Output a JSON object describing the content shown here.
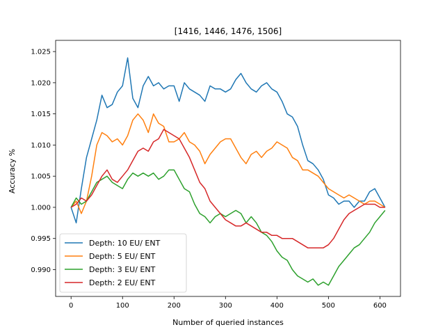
{
  "chart_data": {
    "type": "line",
    "title": "[1416, 1446, 1476, 1506]",
    "xlabel": "Number of queried instances",
    "ylabel": "Accuracy %",
    "xlim": [
      -30,
      640
    ],
    "ylim": [
      0.9857,
      1.0268
    ],
    "xticks": [
      0,
      100,
      200,
      300,
      400,
      500,
      600
    ],
    "yticks": [
      0.99,
      0.995,
      1.0,
      1.005,
      1.01,
      1.015,
      1.02,
      1.025
    ],
    "ytick_labels": [
      "0.990",
      "0.995",
      "1.000",
      "1.005",
      "1.010",
      "1.015",
      "1.020",
      "1.025"
    ],
    "grid": false,
    "legend_position": "lower-left",
    "series": [
      {
        "name": "Depth: 10 EU/ ENT",
        "color": "#1f77b4",
        "x": [
          0,
          10,
          20,
          30,
          40,
          50,
          60,
          70,
          80,
          90,
          100,
          110,
          120,
          130,
          140,
          150,
          160,
          170,
          180,
          190,
          200,
          210,
          220,
          230,
          240,
          250,
          260,
          270,
          280,
          290,
          300,
          310,
          320,
          330,
          340,
          350,
          360,
          370,
          380,
          390,
          400,
          410,
          420,
          430,
          440,
          450,
          460,
          470,
          480,
          490,
          500,
          510,
          520,
          530,
          540,
          550,
          560,
          570,
          580,
          590,
          600,
          610
        ],
        "y": [
          1.0,
          0.9975,
          1.003,
          1.008,
          1.011,
          1.014,
          1.018,
          1.016,
          1.0165,
          1.0185,
          1.0195,
          1.024,
          1.0175,
          1.016,
          1.0195,
          1.021,
          1.0195,
          1.02,
          1.019,
          1.0195,
          1.0195,
          1.017,
          1.02,
          1.019,
          1.0185,
          1.018,
          1.017,
          1.0195,
          1.019,
          1.019,
          1.0185,
          1.019,
          1.0205,
          1.0215,
          1.02,
          1.019,
          1.0185,
          1.0195,
          1.02,
          1.019,
          1.0185,
          1.017,
          1.015,
          1.0145,
          1.013,
          1.01,
          1.0075,
          1.007,
          1.006,
          1.0045,
          1.002,
          1.0015,
          1.0005,
          1.001,
          1.001,
          1.0,
          1.001,
          1.001,
          1.0025,
          1.003,
          1.0015,
          1.0
        ]
      },
      {
        "name": "Depth: 5 EU/ ENT",
        "color": "#ff7f0e",
        "x": [
          0,
          10,
          20,
          30,
          40,
          50,
          60,
          70,
          80,
          90,
          100,
          110,
          120,
          130,
          140,
          150,
          160,
          170,
          180,
          190,
          200,
          210,
          220,
          230,
          240,
          250,
          260,
          270,
          280,
          290,
          300,
          310,
          320,
          330,
          340,
          350,
          360,
          370,
          380,
          390,
          400,
          410,
          420,
          430,
          440,
          450,
          460,
          470,
          480,
          490,
          500,
          510,
          520,
          530,
          540,
          550,
          560,
          570,
          580,
          590,
          600,
          610
        ],
        "y": [
          1.0,
          1.001,
          0.999,
          1.001,
          1.005,
          1.01,
          1.012,
          1.0115,
          1.0105,
          1.011,
          1.01,
          1.0115,
          1.014,
          1.015,
          1.014,
          1.012,
          1.015,
          1.0135,
          1.013,
          1.0105,
          1.0105,
          1.011,
          1.012,
          1.0105,
          1.01,
          1.009,
          1.007,
          1.0085,
          1.0095,
          1.0105,
          1.011,
          1.011,
          1.0095,
          1.008,
          1.007,
          1.0085,
          1.009,
          1.008,
          1.009,
          1.0095,
          1.0105,
          1.01,
          1.0095,
          1.008,
          1.0075,
          1.006,
          1.006,
          1.0055,
          1.005,
          1.004,
          1.003,
          1.0025,
          1.002,
          1.0015,
          1.002,
          1.0015,
          1.001,
          1.0005,
          1.001,
          1.001,
          1.0005,
          1.0
        ]
      },
      {
        "name": "Depth: 3 EU/ ENT",
        "color": "#2ca02c",
        "x": [
          0,
          10,
          20,
          30,
          40,
          50,
          60,
          70,
          80,
          90,
          100,
          110,
          120,
          130,
          140,
          150,
          160,
          170,
          180,
          190,
          200,
          210,
          220,
          230,
          240,
          250,
          260,
          270,
          280,
          290,
          300,
          310,
          320,
          330,
          340,
          350,
          360,
          370,
          380,
          390,
          400,
          410,
          420,
          430,
          440,
          450,
          460,
          470,
          480,
          490,
          500,
          510,
          520,
          530,
          540,
          550,
          560,
          570,
          580,
          590,
          600,
          610
        ],
        "y": [
          1.0,
          1.0015,
          1.0005,
          1.001,
          1.0025,
          1.004,
          1.0045,
          1.005,
          1.004,
          1.0035,
          1.003,
          1.0045,
          1.0055,
          1.005,
          1.0055,
          1.005,
          1.0055,
          1.0045,
          1.005,
          1.006,
          1.006,
          1.0045,
          1.003,
          1.0025,
          1.0005,
          0.999,
          0.9985,
          0.9975,
          0.9985,
          0.999,
          0.9985,
          0.999,
          0.9995,
          0.999,
          0.9975,
          0.9985,
          0.9975,
          0.996,
          0.9955,
          0.9945,
          0.993,
          0.992,
          0.9915,
          0.99,
          0.989,
          0.9885,
          0.988,
          0.9885,
          0.9875,
          0.988,
          0.9875,
          0.989,
          0.9905,
          0.9915,
          0.9925,
          0.9935,
          0.994,
          0.995,
          0.996,
          0.9975,
          0.9985,
          0.9995
        ]
      },
      {
        "name": "Depth: 2 EU/ ENT",
        "color": "#d62728",
        "x": [
          0,
          10,
          20,
          30,
          40,
          50,
          60,
          70,
          80,
          90,
          100,
          110,
          120,
          130,
          140,
          150,
          160,
          170,
          180,
          190,
          200,
          210,
          220,
          230,
          240,
          250,
          260,
          270,
          280,
          290,
          300,
          310,
          320,
          330,
          340,
          350,
          360,
          370,
          380,
          390,
          400,
          410,
          420,
          430,
          440,
          450,
          460,
          470,
          480,
          490,
          500,
          510,
          520,
          530,
          540,
          550,
          560,
          570,
          580,
          590,
          600,
          610
        ],
        "y": [
          1.0,
          1.0005,
          1.0015,
          1.001,
          1.002,
          1.0035,
          1.005,
          1.006,
          1.0045,
          1.004,
          1.005,
          1.006,
          1.0075,
          1.009,
          1.0095,
          1.009,
          1.0105,
          1.011,
          1.0125,
          1.012,
          1.0115,
          1.011,
          1.0095,
          1.008,
          1.006,
          1.004,
          1.003,
          1.001,
          1.0,
          0.999,
          0.998,
          0.9975,
          0.997,
          0.997,
          0.9975,
          0.997,
          0.9965,
          0.996,
          0.996,
          0.9955,
          0.9955,
          0.995,
          0.995,
          0.995,
          0.9945,
          0.994,
          0.9935,
          0.9935,
          0.9935,
          0.9935,
          0.994,
          0.995,
          0.9965,
          0.998,
          0.999,
          0.9995,
          1.0,
          1.0005,
          1.0005,
          1.0005,
          1.0,
          1.0
        ]
      }
    ]
  }
}
